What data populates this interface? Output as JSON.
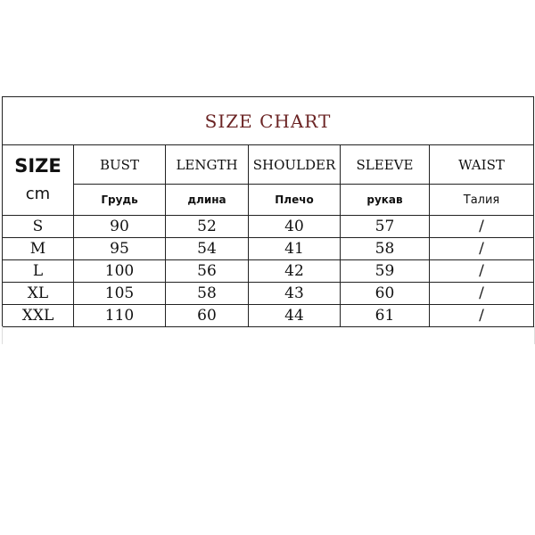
{
  "title": "SIZE CHART",
  "size_label": "SIZE",
  "unit_label": "cm",
  "columns": [
    {
      "en": "BUST",
      "ru": "Грудь"
    },
    {
      "en": "LENGTH",
      "ru": "длина"
    },
    {
      "en": "SHOULDER",
      "ru": "Плечо"
    },
    {
      "en": "SLEEVE",
      "ru": "рукав"
    },
    {
      "en": "WAIST",
      "ru": "Талия"
    }
  ],
  "rows": [
    {
      "size": "S",
      "values": [
        "90",
        "52",
        "40",
        "57",
        "/"
      ]
    },
    {
      "size": "M",
      "values": [
        "95",
        "54",
        "41",
        "58",
        "/"
      ]
    },
    {
      "size": "L",
      "values": [
        "100",
        "56",
        "42",
        "59",
        "/"
      ]
    },
    {
      "size": "XL",
      "values": [
        "105",
        "58",
        "43",
        "60",
        "/"
      ]
    },
    {
      "size": "XXL",
      "values": [
        "110",
        "60",
        "44",
        "61",
        "/"
      ]
    }
  ],
  "colors": {
    "title": "#6b2424",
    "border": "#222222"
  }
}
